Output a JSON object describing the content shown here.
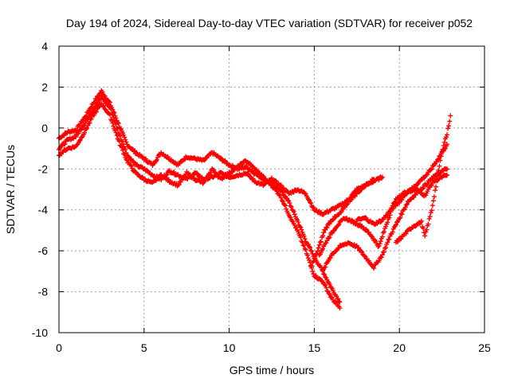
{
  "chart_data": {
    "type": "scatter",
    "title": "Day 194 of 2024, Sidereal Day-to-day VTEC variation (SDTVAR) for receiver p052",
    "xlabel": "GPS time / hours",
    "ylabel": "SDTVAR / TECUs",
    "xlim": [
      0,
      25
    ],
    "ylim": [
      -10,
      4
    ],
    "xticks": [
      0,
      5,
      10,
      15,
      20,
      25
    ],
    "yticks": [
      -10,
      -8,
      -6,
      -4,
      -2,
      0,
      2,
      4
    ],
    "grid": true,
    "marker": "+",
    "colors": {
      "series": "#ff0000",
      "grid": "#a0a0a0",
      "axes": "#000000"
    },
    "series": [
      {
        "values": [
          [
            0,
            -0.5
          ],
          [
            0.5,
            -0.2
          ],
          [
            1,
            -0.1
          ],
          [
            1.5,
            0.5
          ],
          [
            2,
            1.2
          ],
          [
            2.5,
            1.8
          ],
          [
            3,
            1.2
          ],
          [
            3.5,
            0.2
          ],
          [
            4,
            -0.8
          ],
          [
            4.5,
            -1.2
          ],
          [
            5,
            -1.5
          ],
          [
            5.5,
            -1.8
          ],
          [
            6,
            -1.2
          ],
          [
            6.5,
            -1.5
          ],
          [
            7,
            -1.8
          ],
          [
            7.5,
            -1.4
          ],
          [
            8,
            -1.5
          ],
          [
            8.5,
            -1.6
          ],
          [
            9,
            -1.2
          ],
          [
            9.5,
            -1.5
          ],
          [
            10,
            -1.8
          ],
          [
            10.5,
            -2.0
          ],
          [
            11,
            -1.9
          ],
          [
            11.5,
            -2.2
          ],
          [
            12,
            -2.5
          ],
          [
            12.5,
            -2.7
          ],
          [
            13,
            -3.0
          ],
          [
            13.5,
            -3.6
          ],
          [
            14,
            -4.5
          ],
          [
            14.5,
            -5.5
          ],
          [
            15,
            -6.3
          ],
          [
            15.5,
            -7.0
          ],
          [
            16,
            -7.8
          ],
          [
            16.5,
            -8.5
          ]
        ]
      },
      {
        "values": [
          [
            0,
            -1.0
          ],
          [
            0.5,
            -0.6
          ],
          [
            1,
            -0.4
          ],
          [
            1.5,
            0.2
          ],
          [
            2,
            0.9
          ],
          [
            2.5,
            1.5
          ],
          [
            3,
            1.0
          ],
          [
            3.5,
            -0.2
          ],
          [
            4,
            -1.3
          ],
          [
            4.5,
            -1.8
          ],
          [
            5,
            -2.0
          ],
          [
            5.5,
            -2.3
          ],
          [
            6,
            -2.5
          ],
          [
            6.5,
            -2.1
          ],
          [
            7,
            -2.3
          ],
          [
            7.5,
            -2.5
          ],
          [
            8,
            -2.2
          ],
          [
            8.5,
            -2.5
          ],
          [
            9,
            -2.4
          ],
          [
            9.5,
            -2.2
          ],
          [
            10,
            -2.4
          ],
          [
            10.5,
            -2.3
          ],
          [
            11,
            -2.2
          ],
          [
            11.5,
            -2.6
          ],
          [
            12,
            -2.8
          ],
          [
            12.5,
            -2.5
          ],
          [
            13,
            -2.8
          ],
          [
            13.5,
            -3.2
          ],
          [
            14,
            -3.0
          ],
          [
            14.5,
            -3.2
          ],
          [
            15,
            -4.0
          ],
          [
            15.5,
            -4.2
          ],
          [
            16,
            -4.0
          ],
          [
            16.5,
            -3.8
          ],
          [
            17,
            -3.5
          ],
          [
            17.5,
            -3.0
          ],
          [
            18,
            -2.8
          ],
          [
            18.5,
            -2.6
          ],
          [
            19,
            -2.4
          ]
        ]
      },
      {
        "values": [
          [
            0,
            -1.3
          ],
          [
            0.5,
            -1.0
          ],
          [
            1,
            -0.9
          ],
          [
            1.5,
            -0.2
          ],
          [
            2,
            0.6
          ],
          [
            2.5,
            1.2
          ],
          [
            3,
            0.6
          ],
          [
            3.5,
            -0.6
          ],
          [
            4,
            -1.6
          ],
          [
            4.5,
            -2.2
          ],
          [
            5,
            -2.5
          ],
          [
            5.5,
            -2.7
          ],
          [
            6,
            -2.3
          ],
          [
            6.5,
            -2.6
          ],
          [
            7,
            -2.8
          ],
          [
            7.5,
            -2.2
          ],
          [
            8,
            -2.5
          ],
          [
            8.5,
            -2.7
          ],
          [
            9,
            -2.0
          ],
          [
            9.5,
            -2.5
          ],
          [
            10,
            -2.2
          ],
          [
            10.5,
            -1.9
          ],
          [
            11,
            -1.6
          ],
          [
            11.5,
            -2.0
          ],
          [
            12,
            -2.4
          ],
          [
            12.5,
            -2.8
          ],
          [
            13,
            -3.3
          ],
          [
            13.5,
            -4.2
          ],
          [
            14,
            -5.0
          ],
          [
            14.5,
            -6.0
          ],
          [
            15,
            -7.2
          ],
          [
            15.5,
            -7.5
          ],
          [
            16,
            -8.3
          ],
          [
            16.5,
            -8.8
          ]
        ]
      },
      {
        "values": [
          [
            14.8,
            -6.8
          ],
          [
            15.2,
            -6.0
          ],
          [
            15.6,
            -5.0
          ],
          [
            16,
            -4.5
          ],
          [
            16.5,
            -4.2
          ],
          [
            17,
            -3.6
          ],
          [
            17.5,
            -3.2
          ],
          [
            18,
            -2.8
          ],
          [
            18.5,
            -2.5
          ]
        ]
      },
      {
        "values": [
          [
            15.3,
            -6.2
          ],
          [
            15.8,
            -5.4
          ],
          [
            16.3,
            -4.8
          ],
          [
            16.8,
            -4.4
          ],
          [
            17.3,
            -4.6
          ],
          [
            17.8,
            -4.8
          ],
          [
            18.3,
            -5.2
          ],
          [
            18.8,
            -5.8
          ],
          [
            19.2,
            -4.8
          ],
          [
            19.7,
            -3.6
          ],
          [
            20.2,
            -3.2
          ],
          [
            20.7,
            -3.0
          ],
          [
            21.2,
            -2.6
          ],
          [
            21.7,
            -2.2
          ],
          [
            22.2,
            -1.6
          ],
          [
            22.8,
            -0.8
          ]
        ]
      },
      {
        "values": [
          [
            15.5,
            -7.0
          ],
          [
            16,
            -6.2
          ],
          [
            16.5,
            -5.8
          ],
          [
            17,
            -5.6
          ],
          [
            17.5,
            -5.8
          ],
          [
            18,
            -6.3
          ],
          [
            18.5,
            -6.8
          ],
          [
            19,
            -6.2
          ],
          [
            19.5,
            -5.2
          ],
          [
            20,
            -4.4
          ],
          [
            20.5,
            -3.6
          ],
          [
            21,
            -3.2
          ],
          [
            21.5,
            -2.8
          ],
          [
            22,
            -2.4
          ],
          [
            22.5,
            -2.1
          ],
          [
            22.8,
            -2.0
          ]
        ]
      },
      {
        "values": [
          [
            17.5,
            -4.5
          ],
          [
            18,
            -4.4
          ],
          [
            18.5,
            -4.7
          ],
          [
            19,
            -4.5
          ],
          [
            19.5,
            -4.0
          ],
          [
            20,
            -3.6
          ],
          [
            20.5,
            -3.1
          ],
          [
            21,
            -3.0
          ],
          [
            21.5,
            -3.3
          ],
          [
            22,
            -2.6
          ],
          [
            22.5,
            -2.4
          ],
          [
            22.8,
            -2.3
          ]
        ]
      },
      {
        "values": [
          [
            19.8,
            -5.6
          ],
          [
            20.3,
            -5.2
          ],
          [
            20.8,
            -4.8
          ],
          [
            21.3,
            -4.6
          ],
          [
            21.5,
            -5.3
          ],
          [
            21.9,
            -4.0
          ],
          [
            22.2,
            -2.6
          ],
          [
            22.4,
            -1.6
          ],
          [
            22.6,
            -0.8
          ],
          [
            22.8,
            -0.3
          ],
          [
            23.0,
            0.6
          ]
        ]
      }
    ]
  }
}
